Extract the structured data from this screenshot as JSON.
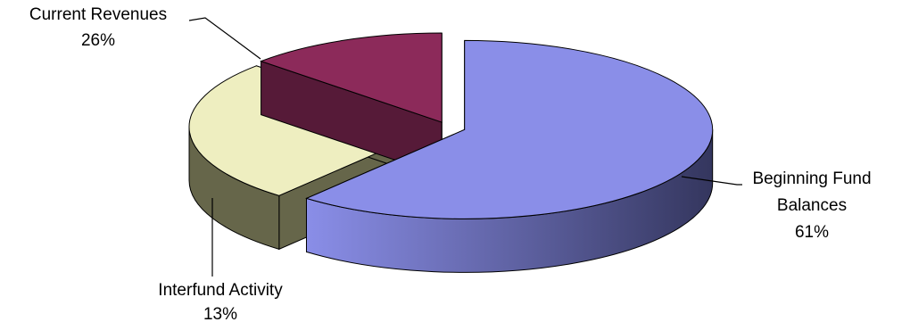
{
  "chart_data": {
    "type": "pie",
    "style": "3d-exploded",
    "title": "",
    "slices": [
      {
        "label_lines": [
          "Beginning Fund",
          "Balances"
        ],
        "percent_label": "61%",
        "value": 61,
        "color": "#8a8ee8",
        "side_color": "#3c3f6e"
      },
      {
        "label_lines": [
          "Current Revenues"
        ],
        "percent_label": "26%",
        "value": 26,
        "color": "#eeeec0",
        "side_color": "#66664a"
      },
      {
        "label_lines": [
          "Interfund Activity"
        ],
        "percent_label": "13%",
        "value": 13,
        "color": "#8c2a5a",
        "side_color": "#561a38"
      }
    ]
  }
}
